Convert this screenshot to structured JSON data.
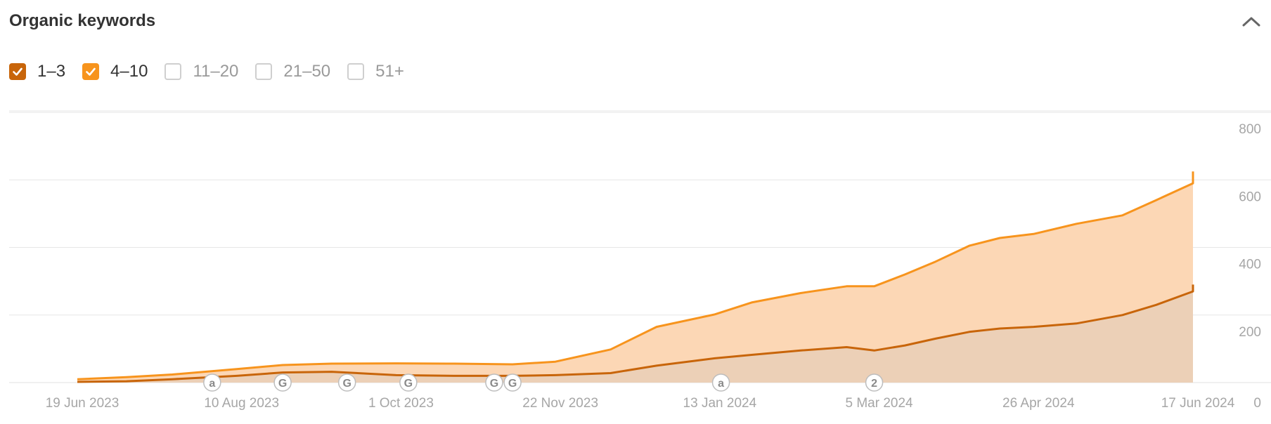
{
  "widget": {
    "title": "Organic keywords",
    "collapse_icon": "chevron-up-icon"
  },
  "filters": [
    {
      "label": "1–3",
      "checked": true,
      "color": "#c8650a"
    },
    {
      "label": "4–10",
      "checked": true,
      "color": "#f7941d"
    },
    {
      "label": "11–20",
      "checked": false,
      "color": ""
    },
    {
      "label": "21–50",
      "checked": false,
      "color": ""
    },
    {
      "label": "51+",
      "checked": false,
      "color": ""
    }
  ],
  "chart_data": {
    "type": "area",
    "stacked": true,
    "x_ticks": [
      "19 Jun 2023",
      "10 Aug 2023",
      "1 Oct 2023",
      "22 Nov 2023",
      "13 Jan 2024",
      "5 Mar 2024",
      "26 Apr 2024",
      "17 Jun 2024"
    ],
    "y_ticks": [
      800,
      600,
      400,
      200,
      0
    ],
    "ylim": [
      0,
      800
    ],
    "y_axis_side": "right",
    "grid": true,
    "x": [
      "2023-06-19",
      "2023-07-05",
      "2023-07-20",
      "2023-08-10",
      "2023-08-25",
      "2023-09-10",
      "2023-10-01",
      "2023-10-20",
      "2023-11-08",
      "2023-11-22",
      "2023-12-10",
      "2023-12-25",
      "2024-01-13",
      "2024-01-25",
      "2024-02-10",
      "2024-02-25",
      "2024-03-05",
      "2024-03-15",
      "2024-03-25",
      "2024-04-05",
      "2024-04-15",
      "2024-04-26",
      "2024-05-10",
      "2024-05-25",
      "2024-06-05",
      "2024-06-17",
      "2024-06-30"
    ],
    "series": [
      {
        "name": "1–3",
        "color": "#c8650a",
        "fill": "#ecd0b7",
        "values": [
          2,
          4,
          10,
          20,
          30,
          32,
          22,
          20,
          20,
          22,
          28,
          50,
          72,
          82,
          95,
          105,
          95,
          110,
          130,
          150,
          160,
          165,
          175,
          200,
          230,
          270,
          290
        ]
      },
      {
        "name": "4–10",
        "color": "#f7941d",
        "fill": "#fcd7b5",
        "values": [
          8,
          12,
          14,
          20,
          22,
          24,
          35,
          36,
          34,
          40,
          70,
          115,
          130,
          155,
          170,
          180,
          190,
          210,
          228,
          255,
          268,
          275,
          295,
          295,
          310,
          320,
          335
        ]
      }
    ],
    "totals": [
      10,
      16,
      24,
      40,
      52,
      56,
      57,
      56,
      54,
      62,
      98,
      165,
      202,
      237,
      265,
      285,
      285,
      320,
      358,
      405,
      428,
      440,
      470,
      495,
      540,
      590,
      625
    ],
    "annotations": [
      {
        "label": "a",
        "date": "2023-08-02"
      },
      {
        "label": "G",
        "date": "2023-08-25"
      },
      {
        "label": "G",
        "date": "2023-09-15"
      },
      {
        "label": "G",
        "date": "2023-10-05"
      },
      {
        "label": "G",
        "date": "2023-11-02"
      },
      {
        "label": "G",
        "date": "2023-11-08"
      },
      {
        "label": "a",
        "date": "2024-01-15"
      },
      {
        "label": "2",
        "date": "2024-03-05"
      }
    ]
  }
}
